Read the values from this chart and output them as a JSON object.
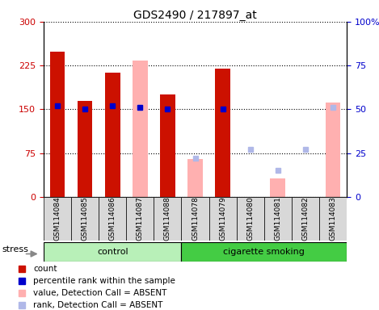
{
  "title": "GDS2490 / 217897_at",
  "samples": [
    "GSM114084",
    "GSM114085",
    "GSM114086",
    "GSM114087",
    "GSM114088",
    "GSM114078",
    "GSM114079",
    "GSM114080",
    "GSM114081",
    "GSM114082",
    "GSM114083"
  ],
  "count_values": [
    248,
    165,
    213,
    null,
    175,
    null,
    220,
    null,
    null,
    null,
    null
  ],
  "rank_values": [
    52,
    50,
    52,
    51,
    50,
    null,
    50,
    null,
    null,
    null,
    null
  ],
  "absent_value_values": [
    null,
    null,
    null,
    234,
    null,
    65,
    null,
    null,
    32,
    null,
    162
  ],
  "absent_rank_values": [
    null,
    null,
    null,
    51,
    null,
    22,
    null,
    27,
    15,
    27,
    51
  ],
  "ylim_left": [
    0,
    300
  ],
  "ylim_right": [
    0,
    100
  ],
  "yticks_left": [
    0,
    75,
    150,
    225,
    300
  ],
  "yticks_right": [
    0,
    25,
    50,
    75,
    100
  ],
  "left_tick_color": "#cc0000",
  "right_tick_color": "#0000cc",
  "bar_color_count": "#cc1100",
  "bar_color_rank": "#0000cc",
  "bar_color_absent_value": "#ffb0b0",
  "bar_color_absent_rank": "#b0b8e8",
  "bar_width": 0.55,
  "ctrl_color": "#b8f0b8",
  "smoke_color": "#44cc44",
  "n_ctrl": 5,
  "n_smoke": 6
}
